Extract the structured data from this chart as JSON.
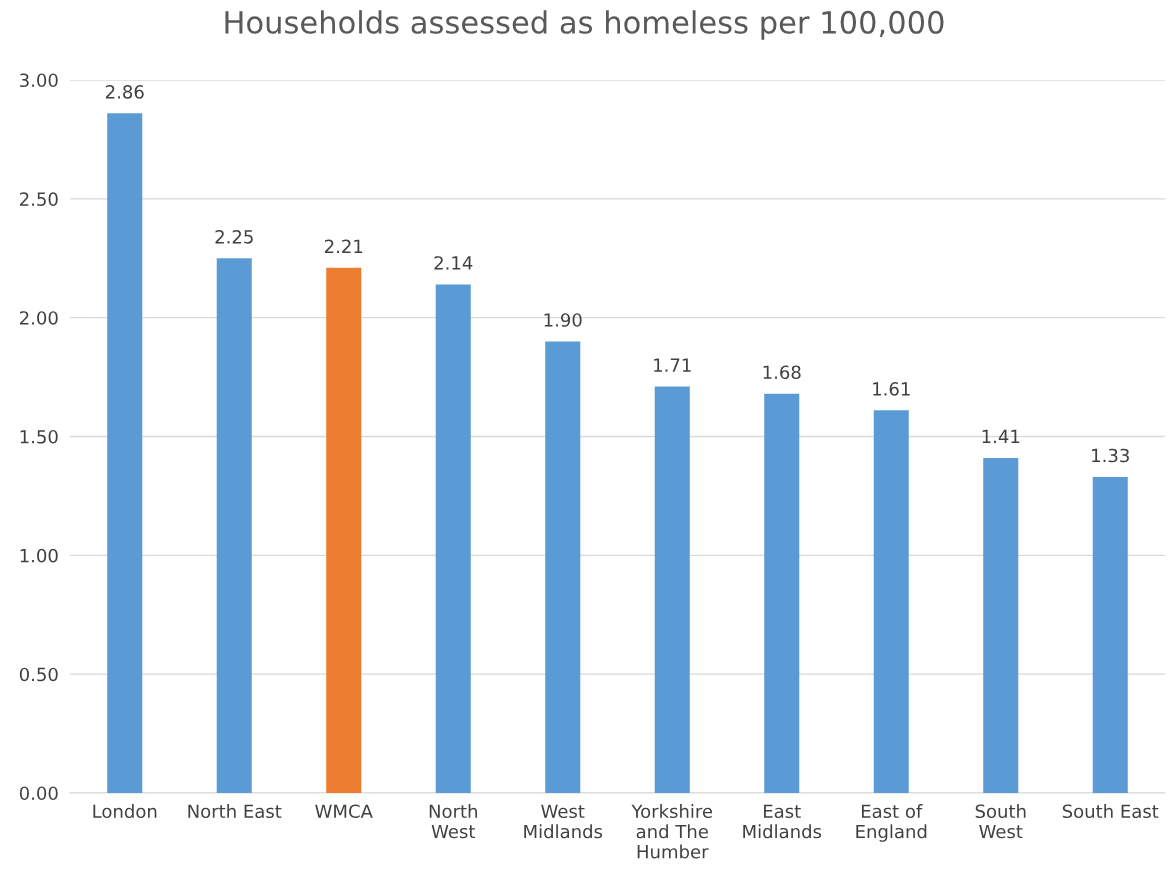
{
  "chart_data": {
    "type": "bar",
    "title": "Households assessed as homeless per 100,000",
    "categories": [
      "London",
      "North East",
      "WMCA",
      "North\nWest",
      "West\nMidlands",
      "Yorkshire\nand The\nHumber",
      "East\nMidlands",
      "East of\nEngland",
      "South\nWest",
      "South East"
    ],
    "values": [
      2.86,
      2.25,
      2.21,
      2.14,
      1.9,
      1.71,
      1.68,
      1.61,
      1.41,
      1.33
    ],
    "colors": [
      "#5b9bd5",
      "#5b9bd5",
      "#ed7d31",
      "#5b9bd5",
      "#5b9bd5",
      "#5b9bd5",
      "#5b9bd5",
      "#5b9bd5",
      "#5b9bd5",
      "#5b9bd5"
    ],
    "value_labels": [
      "2.86",
      "2.25",
      "2.21",
      "2.14",
      "1.90",
      "1.71",
      "1.68",
      "1.61",
      "1.41",
      "1.33"
    ],
    "ylim": [
      0,
      3
    ],
    "yticks": [
      {
        "value": 0,
        "label": "0.00"
      },
      {
        "value": 0.5,
        "label": "0.50"
      },
      {
        "value": 1,
        "label": "1.00"
      },
      {
        "value": 1.5,
        "label": "1.50"
      },
      {
        "value": 2,
        "label": "2.00"
      },
      {
        "value": 2.5,
        "label": "2.50"
      },
      {
        "value": 3,
        "label": "3.00"
      }
    ],
    "grid": "y"
  }
}
